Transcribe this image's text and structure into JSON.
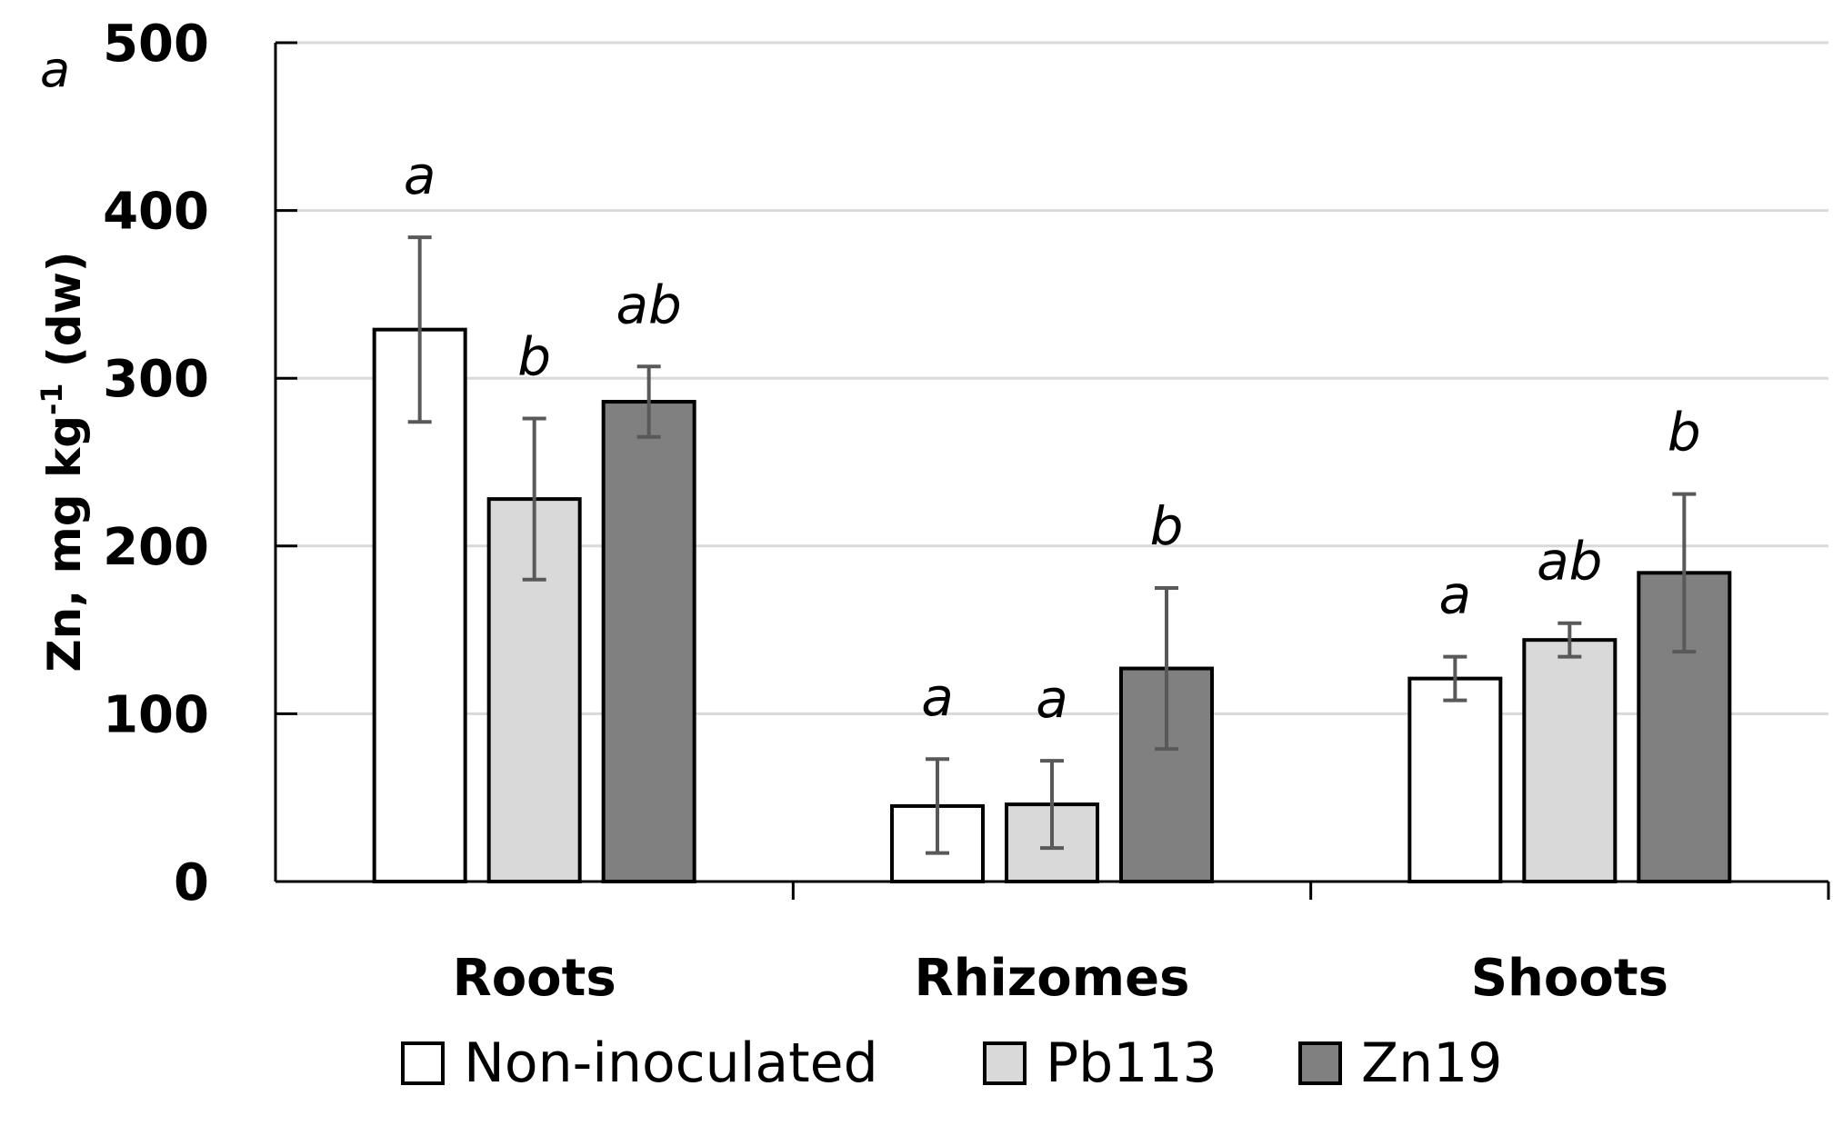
{
  "panel_label": "a",
  "chart_data": {
    "type": "bar",
    "title": "",
    "xlabel": "",
    "ylabel": "Zn, mg kg",
    "ylabel_superscript": "-1",
    "ylabel_suffix": " (dw)",
    "ylim": [
      0,
      500
    ],
    "yticks": [
      0,
      100,
      200,
      300,
      400,
      500
    ],
    "grid": true,
    "legend_position": "bottom",
    "categories": [
      "Roots",
      "Rhizomes",
      "Shoots"
    ],
    "series": [
      {
        "name": "Non-inoculated",
        "color": "#ffffff",
        "values": [
          329,
          45,
          121
        ],
        "errors": [
          55,
          28,
          13
        ],
        "significance": [
          "a",
          "a",
          "a"
        ]
      },
      {
        "name": "Pb113",
        "color": "#d9d9d9",
        "values": [
          228,
          46,
          144
        ],
        "errors": [
          48,
          26,
          10
        ],
        "significance": [
          "b",
          "a",
          "ab"
        ]
      },
      {
        "name": "Zn19",
        "color": "#808080",
        "values": [
          286,
          127,
          184
        ],
        "errors": [
          21,
          48,
          47
        ],
        "significance": [
          "ab",
          "b",
          "b"
        ]
      }
    ]
  }
}
